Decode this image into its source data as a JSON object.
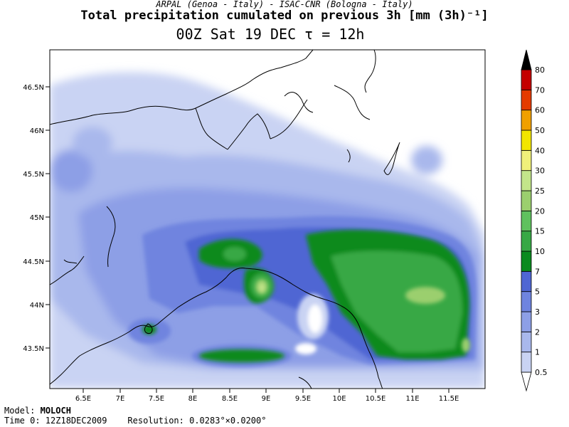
{
  "header": {
    "credit": "ARPAL (Genoa - Italy)  -  ISAC-CNR (Bologna - Italy)",
    "title": "Total precipitation cumulated on previous 3h [mm (3h)⁻¹]",
    "subtitle": "00Z Sat 19 DEC  τ = 12h"
  },
  "map": {
    "lon_ticks": [
      "6.5E",
      "7E",
      "7.5E",
      "8E",
      "8.5E",
      "9E",
      "9.5E",
      "10E",
      "10.5E",
      "11E",
      "11.5E"
    ],
    "lat_ticks": [
      "46.5N",
      "46N",
      "45.5N",
      "45N",
      "44.5N",
      "44N",
      "43.5N"
    ],
    "max_rain_area": "Ligurian Sea off Genoa (~44.2N, 8.9E)"
  },
  "colorbar": {
    "labels": [
      "0.5",
      "1",
      "2",
      "3",
      "5",
      "7",
      "10",
      "15",
      "20",
      "25",
      "30",
      "40",
      "50",
      "60",
      "70",
      "80"
    ],
    "colors": [
      "#c9d3f3",
      "#a9b8ec",
      "#8d9fe6",
      "#6f84df",
      "#4f66d3",
      "#0b8a1f",
      "#37a845",
      "#5fc15e",
      "#9bcf6e",
      "#c3e58a",
      "#f0f07a",
      "#f2e600",
      "#f0a000",
      "#e43b00",
      "#c40000",
      "#8c0000",
      "#000000"
    ]
  },
  "footer": {
    "model_label": "Model:",
    "model_name": "MOLOCH",
    "time_line": "Time 0: 12Z18DEC2009",
    "resolution": "Resolution: 0.0283°×0.0200°"
  }
}
